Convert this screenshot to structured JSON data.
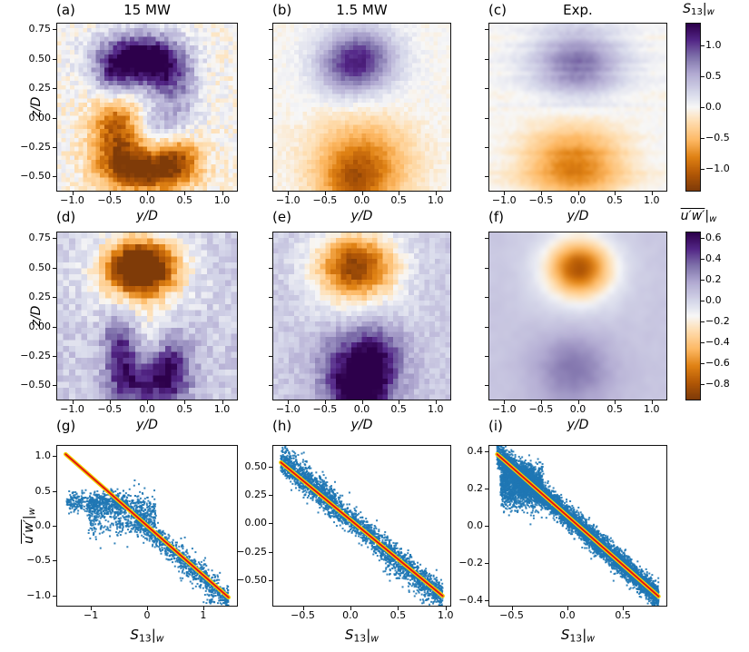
{
  "figure": {
    "background": "#ffffff",
    "colors": {
      "scatter_point": "#1f77b4",
      "fit_line_outer": "#f0d400",
      "fit_line_inner": "#e31313",
      "axis": "#111111",
      "text": "#000000"
    },
    "colormap_name": "PuOr reversed (orange=negative, purple=positive)",
    "colormap_stops": [
      [
        0.0,
        "#7f3b08"
      ],
      [
        0.1,
        "#b35806"
      ],
      [
        0.2,
        "#e08214"
      ],
      [
        0.3,
        "#fdb863"
      ],
      [
        0.42,
        "#fee0b6"
      ],
      [
        0.5,
        "#f7f7f7"
      ],
      [
        0.58,
        "#d8daeb"
      ],
      [
        0.7,
        "#b2abd2"
      ],
      [
        0.8,
        "#8073ac"
      ],
      [
        0.9,
        "#542788"
      ],
      [
        1.0,
        "#2d004b"
      ]
    ],
    "colorbars": [
      {
        "id": "cb1",
        "row": 0,
        "title_plain": "S13|w",
        "title_segments": [
          {
            "t": "S",
            "i": 1
          },
          {
            "t": "13",
            "s": 1
          },
          {
            "t": "|"
          },
          {
            "t": "w",
            "s": 1,
            "i": 1
          }
        ],
        "vmin": -1.35,
        "vmax": 1.35,
        "ticks": [
          {
            "v": 1.0,
            "l": "1.0"
          },
          {
            "v": 0.5,
            "l": "0.5"
          },
          {
            "v": 0.0,
            "l": "0.0"
          },
          {
            "v": -0.5,
            "l": "−0.5"
          },
          {
            "v": -1.0,
            "l": "−1.0"
          }
        ]
      },
      {
        "id": "cb2",
        "row": 1,
        "title_plain": "u'w'|w (overline)",
        "title_segments": [
          {
            "t": "u′w′",
            "i": 1,
            "o": 1
          },
          {
            "t": "|"
          },
          {
            "t": "w",
            "s": 1,
            "i": 1
          }
        ],
        "vmin": -0.95,
        "vmax": 0.65,
        "ticks": [
          {
            "v": 0.6,
            "l": "0.6"
          },
          {
            "v": 0.4,
            "l": "0.4"
          },
          {
            "v": 0.2,
            "l": "0.2"
          },
          {
            "v": 0.0,
            "l": "0.0"
          },
          {
            "v": -0.2,
            "l": "−0.2"
          },
          {
            "v": -0.4,
            "l": "−0.4"
          },
          {
            "v": -0.6,
            "l": "−0.6"
          },
          {
            "v": -0.8,
            "l": "−0.8"
          }
        ]
      }
    ],
    "math_labels": {
      "yD": [
        {
          "t": "y/D",
          "i": 1
        }
      ],
      "zD": [
        {
          "t": "z/D",
          "i": 1
        }
      ],
      "S13w": [
        {
          "t": "S",
          "i": 1
        },
        {
          "t": "13",
          "s": 1
        },
        {
          "t": "|"
        },
        {
          "t": "w",
          "s": 1,
          "i": 1
        }
      ],
      "uww": [
        {
          "t": "u′w′",
          "i": 1,
          "o": 1
        },
        {
          "t": "|"
        },
        {
          "t": "w",
          "s": 1,
          "i": 1
        }
      ]
    },
    "shared_axes": {
      "heat_xlim": [
        -1.2,
        1.2
      ],
      "heat_ylim": [
        -0.62,
        0.8
      ],
      "heat_xticks": [
        {
          "v": -1.0,
          "l": "−1.0"
        },
        {
          "v": -0.5,
          "l": "−0.5"
        },
        {
          "v": 0.0,
          "l": "0.0"
        },
        {
          "v": 0.5,
          "l": "0.5"
        },
        {
          "v": 1.0,
          "l": "1.0"
        }
      ],
      "heat_yticks": [
        {
          "v": 0.75,
          "l": "0.75"
        },
        {
          "v": 0.5,
          "l": "0.50"
        },
        {
          "v": 0.25,
          "l": "0.25"
        },
        {
          "v": 0.0,
          "l": "0.00"
        },
        {
          "v": -0.25,
          "l": "−0.25"
        },
        {
          "v": -0.5,
          "l": "−0.50"
        }
      ]
    }
  },
  "chart_data": [
    {
      "id": "a",
      "type": "heatmap",
      "letter": "(a)",
      "title": "15 MW",
      "xlabel": "yD",
      "ylabel": "zD",
      "axes": "heat",
      "show_ytick_labels": true,
      "value_name": "S13|w",
      "vmin": -1.35,
      "vmax": 1.35,
      "background": -0.03,
      "noise": 0.17,
      "noise_style": "speckle",
      "render": "pixel",
      "nx": 42,
      "ny": 38,
      "seed": 11,
      "blobs": [
        [
          -0.12,
          0.5,
          0.38,
          0.155,
          1.55
        ],
        [
          -0.45,
          0.33,
          0.18,
          0.15,
          0.55
        ],
        [
          0.28,
          0.36,
          0.22,
          0.17,
          0.65
        ],
        [
          0.52,
          0.1,
          0.16,
          0.22,
          0.3
        ],
        [
          -0.42,
          0.02,
          0.22,
          0.15,
          -0.7
        ],
        [
          -0.38,
          -0.25,
          0.25,
          0.17,
          -0.85
        ],
        [
          0.0,
          -0.45,
          0.38,
          0.13,
          -1.35
        ],
        [
          0.42,
          -0.32,
          0.2,
          0.14,
          -0.8
        ],
        [
          0.18,
          -0.08,
          0.22,
          0.16,
          0.5
        ]
      ]
    },
    {
      "id": "b",
      "type": "heatmap",
      "letter": "(b)",
      "title": "1.5 MW",
      "xlabel": "yD",
      "ylabel": null,
      "axes": "heat",
      "show_ytick_labels": false,
      "value_name": "S13|w",
      "vmin": -1.35,
      "vmax": 1.35,
      "background": -0.02,
      "noise": 0.07,
      "noise_style": "speckle",
      "render": "pixel",
      "nx": 42,
      "ny": 38,
      "seed": 22,
      "blobs": [
        [
          -0.03,
          0.5,
          0.36,
          0.185,
          1.05
        ],
        [
          -0.28,
          0.36,
          0.28,
          0.15,
          0.25
        ],
        [
          0.0,
          -0.4,
          0.44,
          0.25,
          -0.9
        ],
        [
          -0.12,
          -0.58,
          0.28,
          0.14,
          -0.4
        ]
      ]
    },
    {
      "id": "c",
      "type": "heatmap",
      "letter": "(c)",
      "title": "Exp.",
      "xlabel": "yD",
      "ylabel": null,
      "axes": "heat",
      "show_ytick_labels": false,
      "value_name": "S13|w",
      "vmin": -1.35,
      "vmax": 1.35,
      "background": -0.01,
      "noise": 0.08,
      "noise_style": "streaks",
      "render": "smooth",
      "nx": 46,
      "ny": 42,
      "seed": 33,
      "blobs": [
        [
          0.0,
          0.46,
          0.42,
          0.21,
          0.8
        ],
        [
          -0.05,
          -0.4,
          0.46,
          0.23,
          -0.85
        ]
      ]
    },
    {
      "id": "d",
      "type": "heatmap",
      "letter": "(d)",
      "title": null,
      "xlabel": "yD",
      "ylabel": "zD",
      "axes": "heat",
      "show_ytick_labels": true,
      "value_name": "u'w'|w",
      "vmin": -0.95,
      "vmax": 0.65,
      "background": 0.04,
      "noise": 0.1,
      "noise_style": "speckle",
      "render": "pixel",
      "nx": 30,
      "ny": 28,
      "seed": 44,
      "blobs": [
        [
          -0.08,
          0.5,
          0.3,
          0.15,
          -1.25
        ],
        [
          -0.1,
          0.44,
          0.5,
          0.26,
          -0.3
        ],
        [
          -0.32,
          -0.3,
          0.17,
          0.21,
          0.42
        ],
        [
          0.33,
          -0.34,
          0.19,
          0.2,
          0.5
        ],
        [
          -0.03,
          -0.49,
          0.28,
          0.13,
          0.38
        ],
        [
          -0.38,
          -0.05,
          0.14,
          0.14,
          0.22
        ],
        [
          0.05,
          -0.06,
          0.2,
          0.15,
          -0.14
        ]
      ]
    },
    {
      "id": "e",
      "type": "heatmap",
      "letter": "(e)",
      "title": null,
      "xlabel": "yD",
      "ylabel": null,
      "axes": "heat",
      "show_ytick_labels": false,
      "value_name": "u'w'|w",
      "vmin": -0.95,
      "vmax": 0.65,
      "background": 0.04,
      "noise": 0.07,
      "noise_style": "speckle",
      "render": "pixel",
      "nx": 34,
      "ny": 32,
      "seed": 55,
      "blobs": [
        [
          -0.08,
          0.51,
          0.38,
          0.19,
          -0.95
        ],
        [
          -0.02,
          -0.36,
          0.36,
          0.25,
          0.6
        ],
        [
          -0.05,
          -0.56,
          0.26,
          0.15,
          0.35
        ],
        [
          0.25,
          -0.22,
          0.2,
          0.2,
          0.18
        ],
        [
          -0.02,
          0.12,
          0.5,
          0.12,
          -0.1
        ]
      ]
    },
    {
      "id": "f",
      "type": "heatmap",
      "letter": "(f)",
      "title": null,
      "xlabel": "yD",
      "ylabel": null,
      "axes": "heat",
      "show_ytick_labels": false,
      "value_name": "u'w'|w",
      "vmin": -0.95,
      "vmax": 0.65,
      "background": 0.06,
      "noise": 0.015,
      "noise_style": "speckle",
      "render": "smooth",
      "nx": 24,
      "ny": 22,
      "seed": 66,
      "blobs": [
        [
          0.02,
          0.5,
          0.29,
          0.16,
          -0.72
        ],
        [
          0.0,
          0.44,
          0.44,
          0.27,
          -0.16
        ],
        [
          -0.06,
          -0.36,
          0.38,
          0.23,
          0.26
        ]
      ]
    },
    {
      "id": "g",
      "type": "scatter",
      "letter": "(g)",
      "xlabel": "S13w",
      "ylabel": "uww",
      "xlim": [
        -1.6,
        1.6
      ],
      "ylim": [
        -1.15,
        1.15
      ],
      "xticks": [
        {
          "v": -1,
          "l": "−1"
        },
        {
          "v": 0,
          "l": "0"
        },
        {
          "v": 1,
          "l": "1"
        }
      ],
      "yticks": [
        {
          "v": 1.0,
          "l": "1.0"
        },
        {
          "v": 0.5,
          "l": "0.5"
        },
        {
          "v": 0.0,
          "l": "0.0"
        },
        {
          "v": -0.5,
          "l": "−0.5"
        },
        {
          "v": -1.0,
          "l": "−1.0"
        }
      ],
      "show_ytick_labels": true,
      "fit_line": {
        "x0": -1.45,
        "y0": 1.03,
        "x1": 1.45,
        "y1": -1.03
      },
      "trend": {
        "slope": -0.71,
        "intercept": 0.0
      },
      "seed": 101,
      "point_size": 2,
      "clusters": [
        {
          "n": 950,
          "x": [
            -0.25,
            1.45
          ],
          "mode": "line",
          "dy": -0.03,
          "sy": 0.085
        },
        {
          "n": 650,
          "x": [
            -1.05,
            0.15
          ],
          "mode": "flat",
          "yc": 0.17,
          "sy": 0.15
        },
        {
          "n": 500,
          "x": [
            -1.43,
            -0.35
          ],
          "mode": "flat",
          "yc": 0.34,
          "sy": 0.07
        },
        {
          "n": 130,
          "x": [
            0.55,
            1.45
          ],
          "mode": "line",
          "dy": -0.1,
          "sy": 0.16
        }
      ]
    },
    {
      "id": "h",
      "type": "scatter",
      "letter": "(h)",
      "xlabel": "S13w",
      "ylabel": null,
      "xlim": [
        -0.81,
        1.05
      ],
      "ylim": [
        -0.72,
        0.68
      ],
      "xticks": [
        {
          "v": -0.5,
          "l": "−0.5"
        },
        {
          "v": 0.0,
          "l": "0.0"
        },
        {
          "v": 0.5,
          "l": "0.5"
        },
        {
          "v": 1.0,
          "l": "1.0"
        }
      ],
      "yticks": [
        {
          "v": 0.5,
          "l": "0.50"
        },
        {
          "v": 0.25,
          "l": "0.25"
        },
        {
          "v": 0.0,
          "l": "0.00"
        },
        {
          "v": -0.25,
          "l": "−0.25"
        },
        {
          "v": -0.5,
          "l": "−0.50"
        }
      ],
      "show_ytick_labels": true,
      "fit_line": {
        "x0": -0.73,
        "y0": 0.535,
        "x1": 0.97,
        "y1": -0.635
      },
      "trend": {
        "slope": -0.688,
        "intercept": 0.033
      },
      "seed": 202,
      "point_size": 2,
      "clusters": [
        {
          "n": 2300,
          "x": [
            -0.73,
            0.97
          ],
          "mode": "line",
          "dy": 0,
          "sy": 0.055
        },
        {
          "n": 350,
          "x": [
            -0.73,
            -0.15
          ],
          "mode": "line",
          "dy": 0.07,
          "sy": 0.06
        },
        {
          "n": 250,
          "x": [
            0.3,
            0.97
          ],
          "mode": "line",
          "dy": -0.08,
          "sy": 0.07
        }
      ]
    },
    {
      "id": "i",
      "type": "scatter",
      "letter": "(i)",
      "xlabel": "S13w",
      "ylabel": null,
      "xlim": [
        -0.7,
        0.89
      ],
      "ylim": [
        -0.43,
        0.43
      ],
      "xticks": [
        {
          "v": -0.5,
          "l": "−0.5"
        },
        {
          "v": 0.0,
          "l": "0.0"
        },
        {
          "v": 0.5,
          "l": "0.5"
        }
      ],
      "yticks": [
        {
          "v": 0.4,
          "l": "0.4"
        },
        {
          "v": 0.2,
          "l": "0.2"
        },
        {
          "v": 0.0,
          "l": "0.0"
        },
        {
          "v": -0.2,
          "l": "−0.2"
        },
        {
          "v": -0.4,
          "l": "−0.4"
        }
      ],
      "show_ytick_labels": true,
      "fit_line": {
        "x0": -0.63,
        "y0": 0.385,
        "x1": 0.82,
        "y1": -0.38
      },
      "trend": {
        "slope": -0.528,
        "intercept": 0.052
      },
      "seed": 303,
      "point_size": 2,
      "clusters": [
        {
          "n": 5500,
          "x": [
            -0.63,
            0.82
          ],
          "mode": "line",
          "dy": 0,
          "sy": 0.032
        },
        {
          "n": 1600,
          "x": [
            -0.6,
            -0.22
          ],
          "mode": "flat",
          "yc": 0.21,
          "sy": 0.055
        },
        {
          "n": 450,
          "x": [
            -0.57,
            -0.3
          ],
          "mode": "flat",
          "yc": 0.28,
          "sy": 0.03
        }
      ]
    }
  ]
}
